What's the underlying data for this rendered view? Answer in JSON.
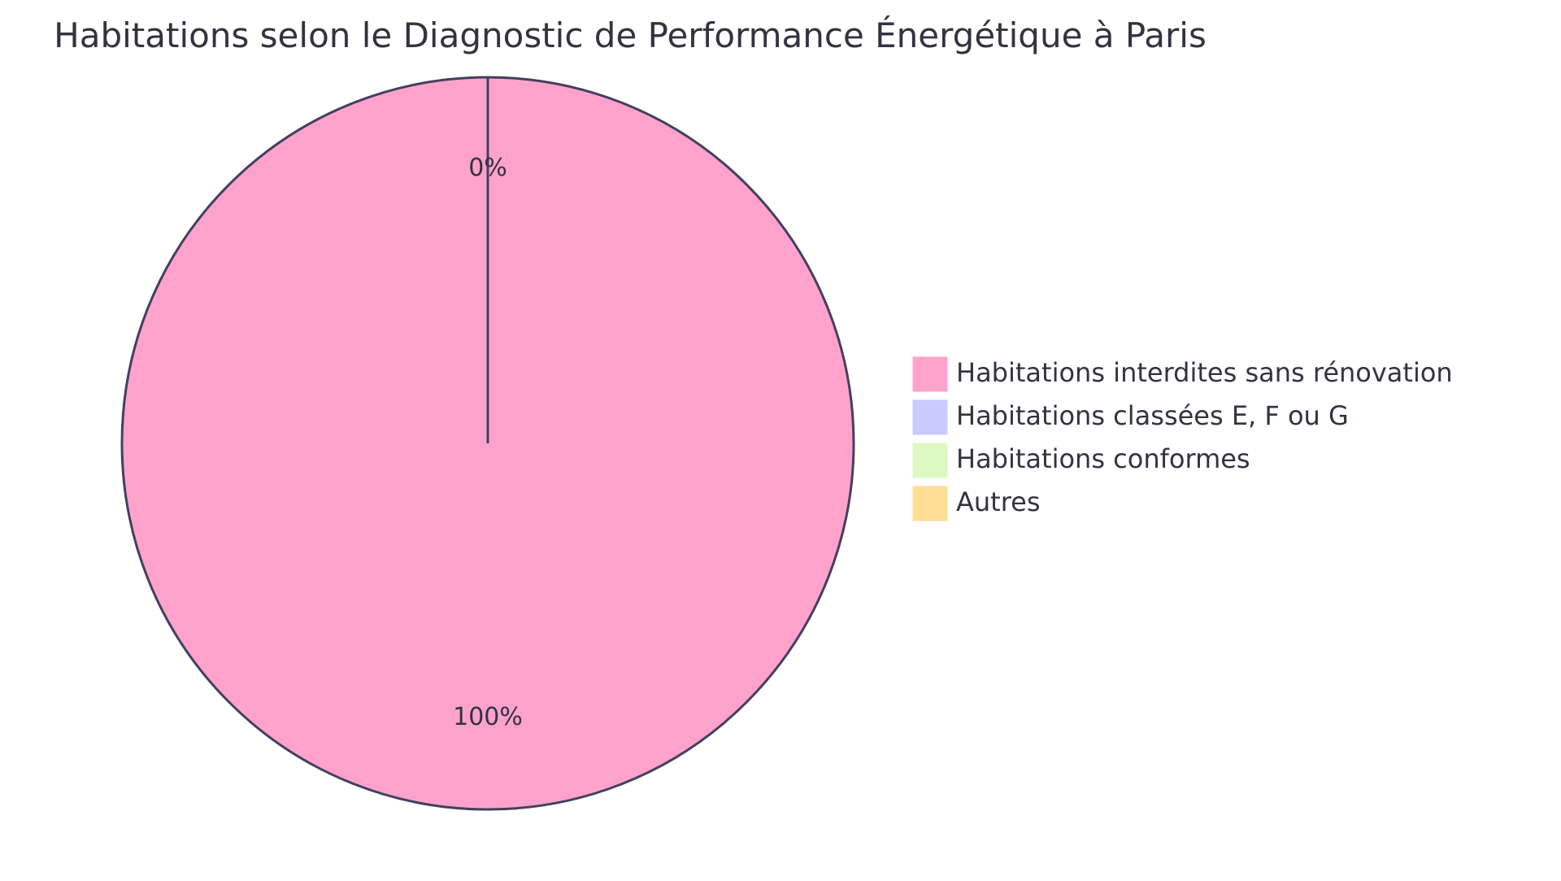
{
  "chart_data": {
    "type": "pie",
    "title": "Habitations selon le Diagnostic de Performance Énergétique à Paris",
    "series": [
      {
        "name": "Habitations interdites sans rénovation",
        "value": 100,
        "label": "100%",
        "color": "#FFA3CD"
      },
      {
        "name": "Habitations classées E, F ou G",
        "value": 0,
        "label": "",
        "color": "#C9CBFF"
      },
      {
        "name": "Habitations conformes",
        "value": 0,
        "label": "",
        "color": "#DDF9C1"
      },
      {
        "name": "Autres",
        "value": 0,
        "label": "0%",
        "color": "#FFDE95"
      }
    ],
    "legend_position": "right",
    "outline_color": "#43405E"
  }
}
